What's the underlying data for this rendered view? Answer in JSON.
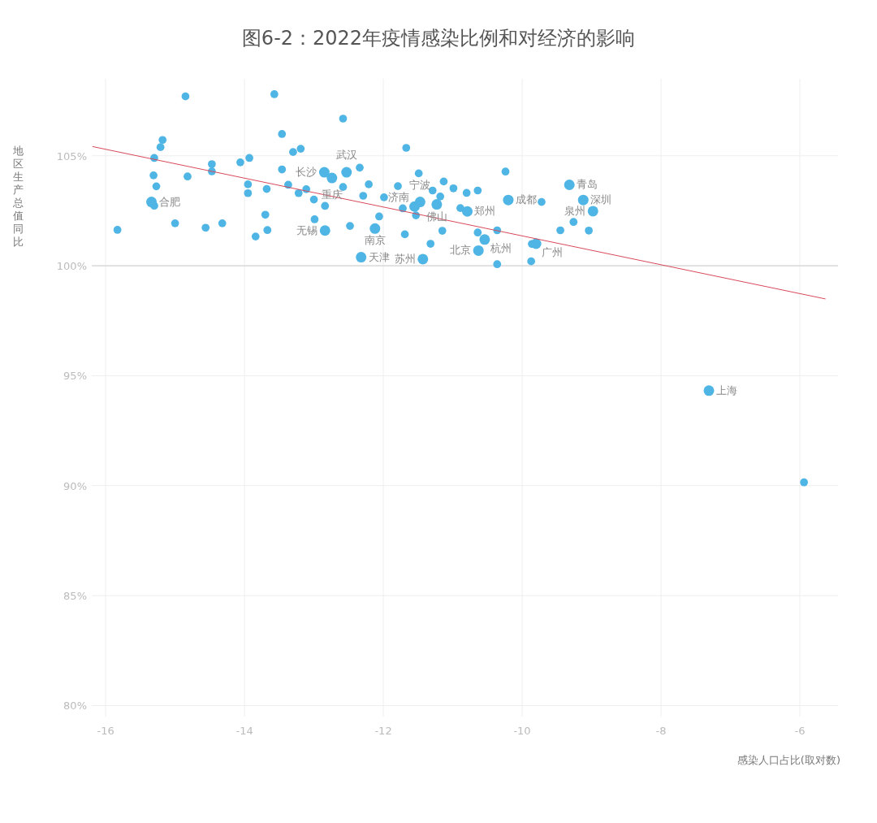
{
  "chart_data": {
    "type": "bubble",
    "title": "图6-2：2022年疫情感染比例和对经济的影响",
    "xlabel": "感染人口占比(取对数)",
    "ylabel": "地区生产总值同比",
    "xlim": [
      -16.2,
      -5.45
    ],
    "ylim": [
      79.5,
      108.5
    ],
    "xticks": [
      -16,
      -14,
      -12,
      -10,
      -8,
      -6
    ],
    "yticks": [
      {
        "value": 80,
        "label": "80%"
      },
      {
        "value": 85,
        "label": "85%"
      },
      {
        "value": 90,
        "label": "90%"
      },
      {
        "value": 95,
        "label": "95%"
      },
      {
        "value": 100,
        "label": "100%"
      },
      {
        "value": 105,
        "label": "105%"
      }
    ],
    "grid": true,
    "ref_lines": [
      {
        "axis": "y",
        "value": 100,
        "color": "#cccccc"
      }
    ],
    "series": [
      {
        "color": "#4fb5e5",
        "x": [
          -14.85,
          -13.57,
          -12.58,
          -15.18,
          -13.46,
          -15.21,
          -13.19,
          -13.3,
          -15.3,
          -13.93,
          -14.06,
          -14.47,
          -13.46,
          -12.34,
          -14.47,
          -15.31,
          -14.82,
          -12.21,
          -13.95,
          -13.37,
          -15.27,
          -13.68,
          -13.11,
          -12.58,
          -13.95,
          -13.22,
          -12.29,
          -13.0,
          -15.3,
          -12.84,
          -13.7,
          -12.99,
          -15.0,
          -14.32,
          -12.48,
          -15.83,
          -14.56,
          -13.67,
          -13.84,
          -11.67,
          -11.49,
          -10.24,
          -11.79,
          -11.13,
          -10.99,
          -10.8,
          -10.64,
          -11.29,
          -11.18,
          -11.99,
          -9.72,
          -11.72,
          -10.89,
          -11.53,
          -12.06,
          -11.69,
          -11.15,
          -10.64,
          -10.36,
          -11.32,
          -9.86,
          -10.36,
          -9.87,
          -9.45,
          -9.26,
          -9.04,
          -5.94,
          -15.34,
          -12.85,
          -12.53,
          -12.74,
          -12.84,
          -12.32,
          -11.47,
          -11.55,
          -11.23,
          -10.2,
          -10.79,
          -12.12,
          -10.54,
          -10.63,
          -11.43,
          -9.8,
          -9.32,
          -9.12,
          -8.98,
          -7.31
        ],
        "values": [
          107.7,
          107.8,
          106.69,
          105.72,
          105.99,
          105.39,
          105.32,
          105.17,
          104.9,
          104.9,
          104.7,
          104.62,
          104.38,
          104.46,
          104.29,
          104.11,
          104.06,
          103.7,
          103.7,
          103.68,
          103.61,
          103.49,
          103.48,
          103.58,
          103.3,
          103.3,
          103.18,
          103.01,
          102.73,
          102.72,
          102.32,
          102.11,
          101.93,
          101.93,
          101.81,
          101.63,
          101.73,
          101.62,
          101.33,
          105.36,
          104.2,
          104.28,
          103.62,
          103.83,
          103.52,
          103.31,
          103.42,
          103.42,
          103.15,
          103.11,
          102.9,
          102.61,
          102.62,
          102.29,
          102.24,
          101.43,
          101.59,
          101.51,
          101.61,
          101.0,
          100.99,
          100.07,
          100.2,
          101.61,
          101.99,
          101.6,
          90.15,
          102.9,
          104.25,
          104.25,
          103.99,
          101.6,
          100.39,
          102.9,
          102.69,
          102.79,
          102.99,
          102.47,
          101.69,
          101.19,
          100.69,
          100.3,
          101.0,
          103.68,
          102.99,
          102.48,
          94.32
        ],
        "sizes": [
          0.56,
          0.56,
          0.56,
          0.56,
          0.56,
          0.56,
          0.56,
          0.56,
          0.56,
          0.56,
          0.56,
          0.56,
          0.56,
          0.56,
          0.56,
          0.56,
          0.56,
          0.56,
          0.56,
          0.56,
          0.56,
          0.56,
          0.56,
          0.56,
          0.56,
          0.56,
          0.56,
          0.56,
          0.56,
          0.56,
          0.56,
          0.56,
          0.56,
          0.56,
          0.56,
          0.56,
          0.56,
          0.56,
          0.56,
          0.56,
          0.56,
          0.56,
          0.56,
          0.56,
          0.56,
          0.56,
          0.56,
          0.56,
          0.56,
          0.56,
          0.56,
          0.56,
          0.56,
          0.56,
          0.56,
          0.56,
          0.56,
          0.56,
          0.56,
          0.56,
          0.56,
          0.56,
          0.56,
          0.56,
          0.56,
          0.56,
          0.56,
          1,
          1,
          1,
          1,
          1,
          1,
          1,
          1,
          1,
          1,
          1,
          1,
          1,
          1,
          1,
          1,
          1,
          1,
          1,
          1
        ]
      },
      {
        "type": "line",
        "color": "#d9495a",
        "x": [
          -16.19,
          -5.63
        ],
        "values": [
          105.42,
          98.49
        ]
      }
    ],
    "annotations": [
      {
        "text": "合肥",
        "x": -15.34,
        "y": 102.9
      },
      {
        "text": "长沙",
        "x": -12.85,
        "y": 104.25
      },
      {
        "text": "武汉",
        "x": -12.53,
        "y": 104.25
      },
      {
        "text": "重庆",
        "x": -12.74,
        "y": 103.99
      },
      {
        "text": "无锡",
        "x": -12.84,
        "y": 101.6
      },
      {
        "text": "天津",
        "x": -12.32,
        "y": 100.39
      },
      {
        "text": "宁波",
        "x": -11.47,
        "y": 102.9
      },
      {
        "text": "济南",
        "x": -11.55,
        "y": 102.69
      },
      {
        "text": "佛山",
        "x": -11.23,
        "y": 102.79
      },
      {
        "text": "成都",
        "x": -10.2,
        "y": 102.99
      },
      {
        "text": "郑州",
        "x": -10.79,
        "y": 102.47
      },
      {
        "text": "南京",
        "x": -12.12,
        "y": 101.69
      },
      {
        "text": "杭州",
        "x": -10.54,
        "y": 101.19
      },
      {
        "text": "北京",
        "x": -10.63,
        "y": 100.69
      },
      {
        "text": "苏州",
        "x": -11.43,
        "y": 100.3
      },
      {
        "text": "广州",
        "x": -9.8,
        "y": 101.0
      },
      {
        "text": "青岛",
        "x": -9.32,
        "y": 103.68
      },
      {
        "text": "深圳",
        "x": -9.12,
        "y": 102.99
      },
      {
        "text": "泉州",
        "x": -8.98,
        "y": 102.48
      },
      {
        "text": "上海",
        "x": -7.31,
        "y": 94.32
      }
    ]
  }
}
